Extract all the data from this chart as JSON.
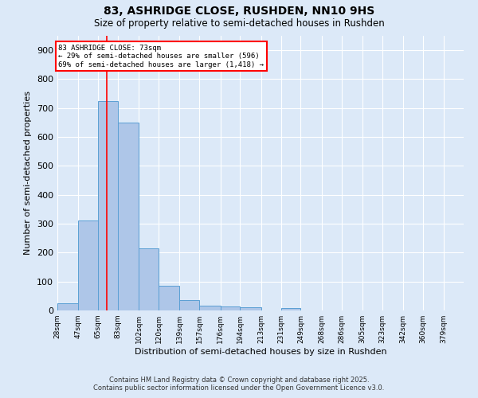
{
  "title": "83, ASHRIDGE CLOSE, RUSHDEN, NN10 9HS",
  "subtitle": "Size of property relative to semi-detached houses in Rushden",
  "xlabel": "Distribution of semi-detached houses by size in Rushden",
  "ylabel": "Number of semi-detached properties",
  "footer_line1": "Contains HM Land Registry data © Crown copyright and database right 2025.",
  "footer_line2": "Contains public sector information licensed under the Open Government Licence v3.0.",
  "bins": [
    28,
    47,
    65,
    83,
    102,
    120,
    139,
    157,
    176,
    194,
    213,
    231,
    249,
    268,
    286,
    305,
    323,
    342,
    360,
    379,
    397
  ],
  "counts": [
    25,
    310,
    725,
    650,
    215,
    85,
    37,
    17,
    15,
    10,
    0,
    8,
    0,
    0,
    0,
    0,
    0,
    0,
    0,
    0
  ],
  "bar_color": "#aec6e8",
  "bar_edge_color": "#5a9fd4",
  "property_size": 73,
  "red_line_x": 73,
  "annotation_text": "83 ASHRIDGE CLOSE: 73sqm\n← 29% of semi-detached houses are smaller (596)\n69% of semi-detached houses are larger (1,418) →",
  "annotation_box_color": "white",
  "annotation_box_edge_color": "red",
  "bg_color": "#dce9f8",
  "plot_bg_color": "#dce9f8",
  "grid_color": "white",
  "ylim": [
    0,
    950
  ],
  "yticks": [
    0,
    100,
    200,
    300,
    400,
    500,
    600,
    700,
    800,
    900
  ]
}
